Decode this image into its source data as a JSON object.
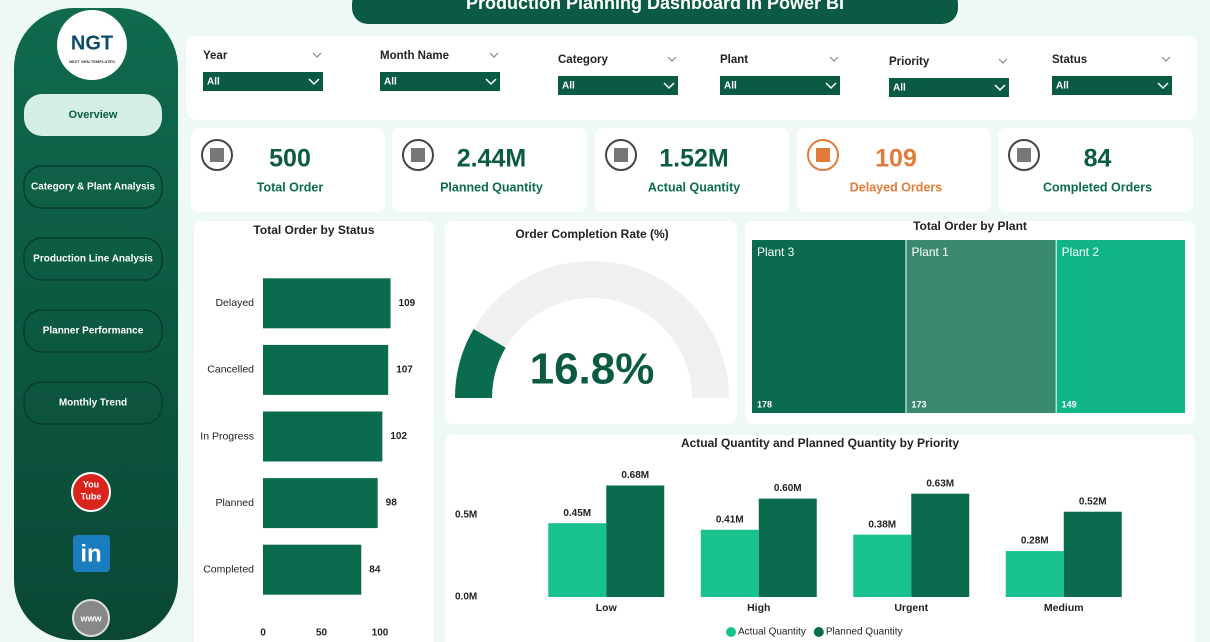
{
  "header": {
    "title": "Production Planning Dashboard in Power BI"
  },
  "logo": {
    "text": "NGT",
    "subtitle": "NEXT GEN TEMPLATES"
  },
  "nav": [
    "Overview",
    "Category & Plant Analysis",
    "Production Line Analysis",
    "Planner Performance",
    "Monthly Trend"
  ],
  "social": {
    "youtube": [
      "You",
      "Tube"
    ],
    "linkedin": "in",
    "web": "www"
  },
  "filters": [
    {
      "label": "Year",
      "value": "All"
    },
    {
      "label": "Month Name",
      "value": "All"
    },
    {
      "label": "Category",
      "value": "All"
    },
    {
      "label": "Plant",
      "value": "All"
    },
    {
      "label": "Priority",
      "value": "All"
    },
    {
      "label": "Status",
      "value": "All"
    }
  ],
  "kpis": [
    {
      "value": "500",
      "label": "Total Order"
    },
    {
      "value": "2.44M",
      "label": "Planned Quantity"
    },
    {
      "value": "1.52M",
      "label": "Actual Quantity"
    },
    {
      "value": "109",
      "label": "Delayed Orders"
    },
    {
      "value": "84",
      "label": "Completed Orders"
    }
  ],
  "chart_data": [
    {
      "type": "hbar",
      "title": "Total Order by Status",
      "categories": [
        "Delayed",
        "Cancelled",
        "In Progress",
        "Planned",
        "Completed"
      ],
      "values": [
        109,
        107,
        102,
        98,
        84
      ],
      "color": "#0b6b4f",
      "xlim": [
        0,
        120
      ],
      "xticks": [
        0,
        50,
        100
      ]
    },
    {
      "type": "gauge",
      "title": "Order Completion Rate (%)",
      "value": 16.8,
      "value_label": "16.8%",
      "ylim": [
        0,
        100
      ],
      "color": "#0b6b4f",
      "track_color": "#f0f0f0"
    },
    {
      "type": "treemap",
      "title": "Total Order by Plant",
      "categories": [
        "Plant 3",
        "Plant 1",
        "Plant 2"
      ],
      "values": [
        178,
        173,
        149
      ],
      "colors": [
        "#0b6b4f",
        "#3a8a70",
        "#10b587"
      ]
    },
    {
      "type": "bar",
      "title": "Actual Quantity and Planned Quantity by Priority",
      "categories": [
        "Low",
        "High",
        "Urgent",
        "Medium"
      ],
      "series": [
        {
          "name": "Actual Quantity",
          "color": "#19c18f",
          "values": [
            450000,
            410000,
            380000,
            280000
          ],
          "value_labels": [
            "0.45M",
            "0.41M",
            "0.38M",
            "0.28M"
          ]
        },
        {
          "name": "Planned Quantity",
          "color": "#0b6b4f",
          "values": [
            680000,
            600000,
            630000,
            520000
          ],
          "value_labels": [
            "0.68M",
            "0.60M",
            "0.63M",
            "0.52M"
          ]
        }
      ],
      "ylim": [
        0,
        800000
      ],
      "yticks": [
        {
          "value": 0,
          "label": "0.0M"
        },
        {
          "value": 500000,
          "label": "0.5M"
        }
      ],
      "legend": "bottom"
    }
  ]
}
